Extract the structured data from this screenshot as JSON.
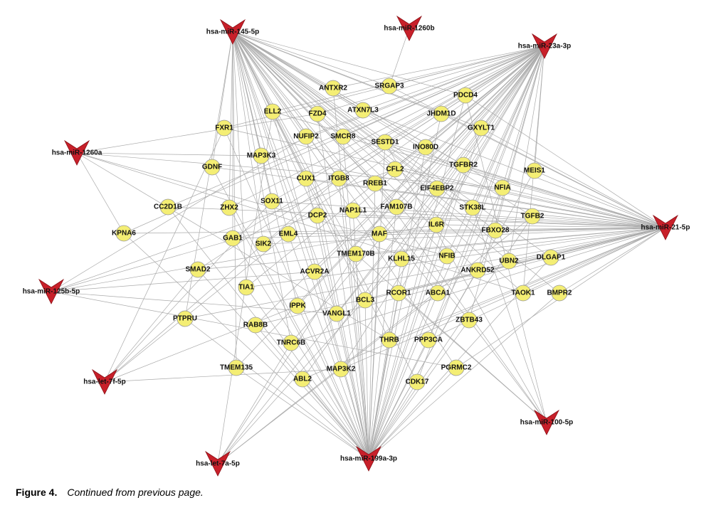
{
  "nodes": {
    "mirnas": [
      "hsa-miR-145-5p",
      "hsa-miR-1260b",
      "hsa-miR-23a-3p",
      "hsa-miR-1260a",
      "hsa-miR-21-5p",
      "hsa-miR-125b-5p",
      "hsa-let-7f-5p",
      "hsa-let-7a-5p",
      "hsa-miR-199a-3p",
      "hsa-miR-100-5p"
    ],
    "genes": [
      "ANTXR2",
      "SRGAP3",
      "PDCD4",
      "ELL2",
      "FZD4",
      "ATXN7L3",
      "JHDM1D",
      "FXR1",
      "NUFIP2",
      "SMCR8",
      "GXYLT1",
      "SESTD1",
      "INO80D",
      "MAP3K3",
      "GDNF",
      "CUX1",
      "ITGB8",
      "CFL2",
      "TGFBR2",
      "MEIS1",
      "RREB1",
      "EIF4EBP2",
      "NFIA",
      "CC2D1B",
      "ZHX2",
      "SOX11",
      "DCP2",
      "NAP1L1",
      "FAM107B",
      "STK38L",
      "TGFB2",
      "KPNA6",
      "GAB1",
      "SIK2",
      "EML4",
      "IL6R",
      "MAF",
      "FBXO28",
      "TMEM170B",
      "KLHL15",
      "NFIB",
      "UBN2",
      "DLGAP1",
      "SMAD2",
      "ACVR2A",
      "ANKRD52",
      "TIA1",
      "RCOR1",
      "ABCA1",
      "TAOK1",
      "BMPR2",
      "BCL3",
      "IPPK",
      "VANGL1",
      "PTPRU",
      "RAB8B",
      "ZBTB43",
      "TNRC6B",
      "THRB",
      "PPP3CA",
      "TMEM135",
      "MAP3K2",
      "PGRMC2",
      "ABL2",
      "CDK17"
    ]
  },
  "caption": {
    "label": "Figure 4.",
    "text": "Continued from previous page."
  }
}
